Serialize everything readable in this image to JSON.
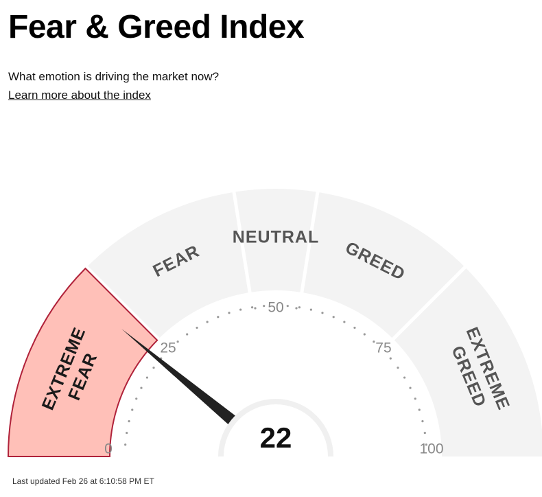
{
  "title": "Fear & Greed Index",
  "subtitle": "What emotion is driving the market now?",
  "learn_more": "Learn more about the index",
  "gauge": {
    "value": 22,
    "min": 0,
    "max": 100,
    "ticks": [
      "0",
      "25",
      "50",
      "75",
      "100"
    ],
    "segments": [
      {
        "label": [
          "EXTREME",
          "FEAR"
        ],
        "from": 0,
        "to": 25,
        "active": true
      },
      {
        "label": [
          "FEAR"
        ],
        "from": 25,
        "to": 45,
        "active": false
      },
      {
        "label": [
          "NEUTRAL"
        ],
        "from": 45,
        "to": 55,
        "active": false
      },
      {
        "label": [
          "GREED"
        ],
        "from": 55,
        "to": 75,
        "active": false
      },
      {
        "label": [
          "EXTREME",
          "GREED"
        ],
        "from": 75,
        "to": 100,
        "active": false
      }
    ],
    "colors": {
      "inactive_fill": "#f3f3f3",
      "active_fill": "#ffc0b8",
      "active_stroke": "#b0223a",
      "label_inactive": "#555555",
      "label_active": "#1a1a1a",
      "tick_text": "#888888",
      "dots": "#999999",
      "needle": "#222222",
      "hub": "#ffffff"
    }
  },
  "last_updated": "Last updated Feb 26 at 6:10:58 PM ET"
}
